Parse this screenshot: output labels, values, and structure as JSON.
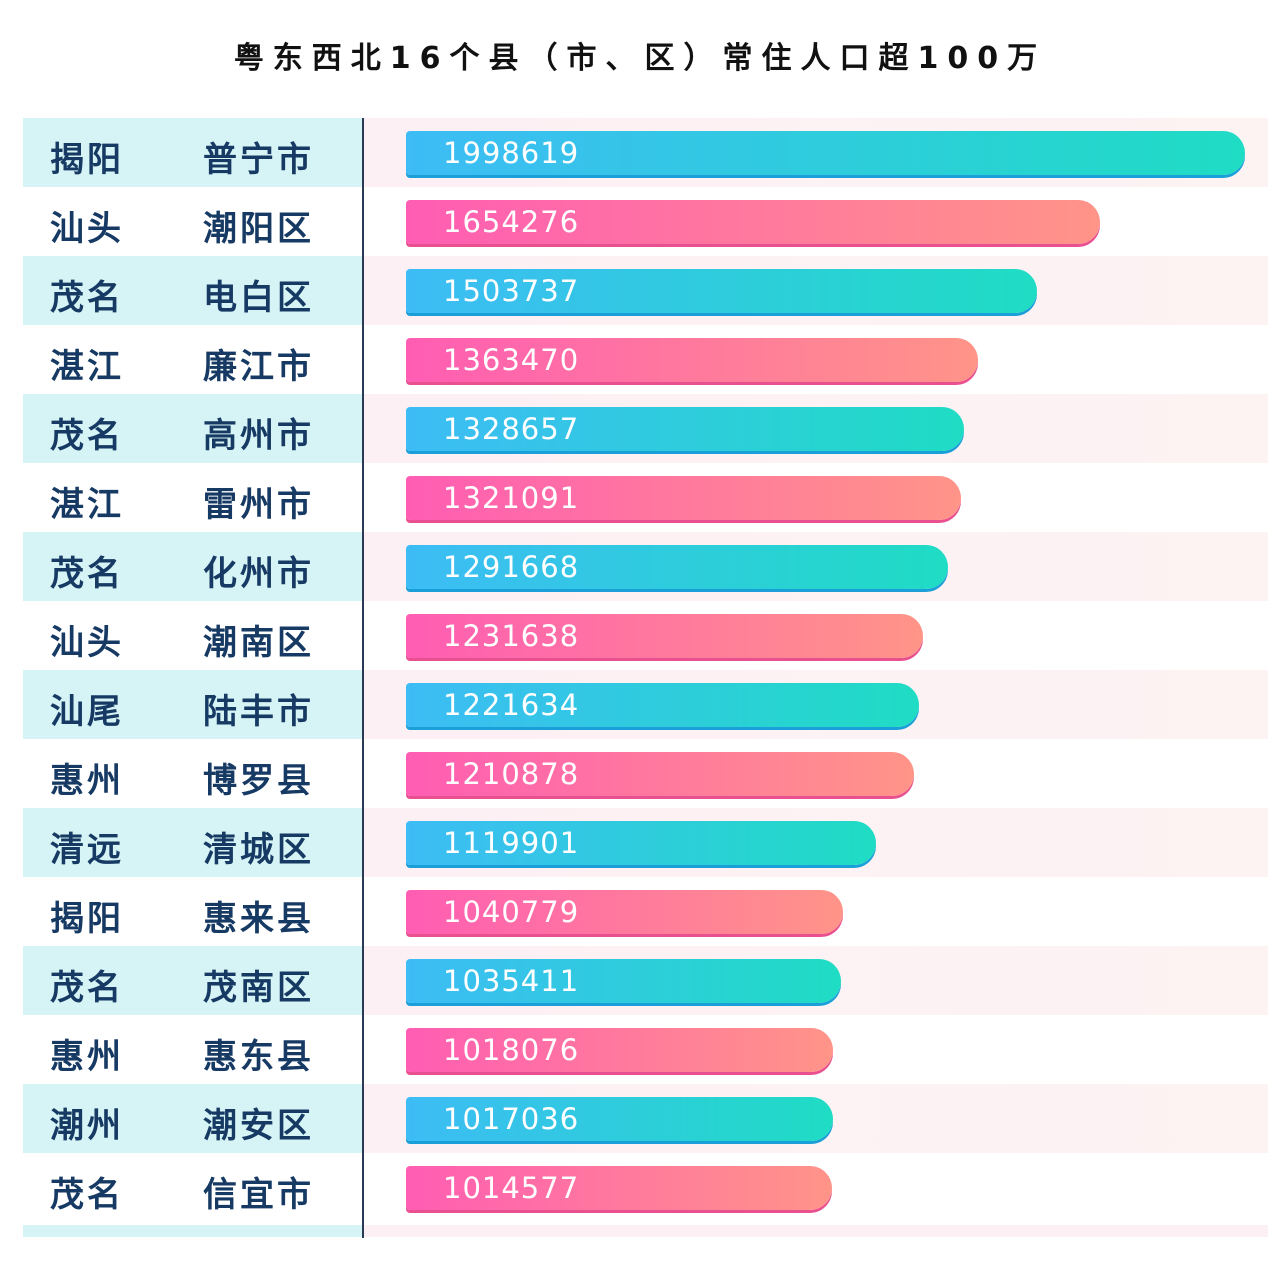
{
  "chart_data": {
    "type": "bar",
    "orientation": "horizontal",
    "title": "粤东西北16个县（市、区）常住人口超100万",
    "xlim": [
      0,
      1998619
    ],
    "grid": false,
    "colors": {
      "blue_start": "#3dbcf5",
      "blue_end": "#1fdcc4",
      "pink_start": "#ff5db3",
      "pink_end": "#ff9488",
      "label": "#163a63"
    },
    "rows": [
      {
        "city": "揭阳",
        "county": "普宁市",
        "value": 1998619
      },
      {
        "city": "汕头",
        "county": "潮阳区",
        "value": 1654276
      },
      {
        "city": "茂名",
        "county": "电白区",
        "value": 1503737
      },
      {
        "city": "湛江",
        "county": "廉江市",
        "value": 1363470
      },
      {
        "city": "茂名",
        "county": "高州市",
        "value": 1328657
      },
      {
        "city": "湛江",
        "county": "雷州市",
        "value": 1321091
      },
      {
        "city": "茂名",
        "county": "化州市",
        "value": 1291668
      },
      {
        "city": "汕头",
        "county": "潮南区",
        "value": 1231638
      },
      {
        "city": "汕尾",
        "county": "陆丰市",
        "value": 1221634
      },
      {
        "city": "惠州",
        "county": "博罗县",
        "value": 1210878
      },
      {
        "city": "清远",
        "county": "清城区",
        "value": 1119901
      },
      {
        "city": "揭阳",
        "county": "惠来县",
        "value": 1040779
      },
      {
        "city": "茂名",
        "county": "茂南区",
        "value": 1035411
      },
      {
        "city": "惠州",
        "county": "惠东县",
        "value": 1018076
      },
      {
        "city": "潮州",
        "county": "潮安区",
        "value": 1017036
      },
      {
        "city": "茂名",
        "county": "信宜市",
        "value": 1014577
      }
    ]
  }
}
